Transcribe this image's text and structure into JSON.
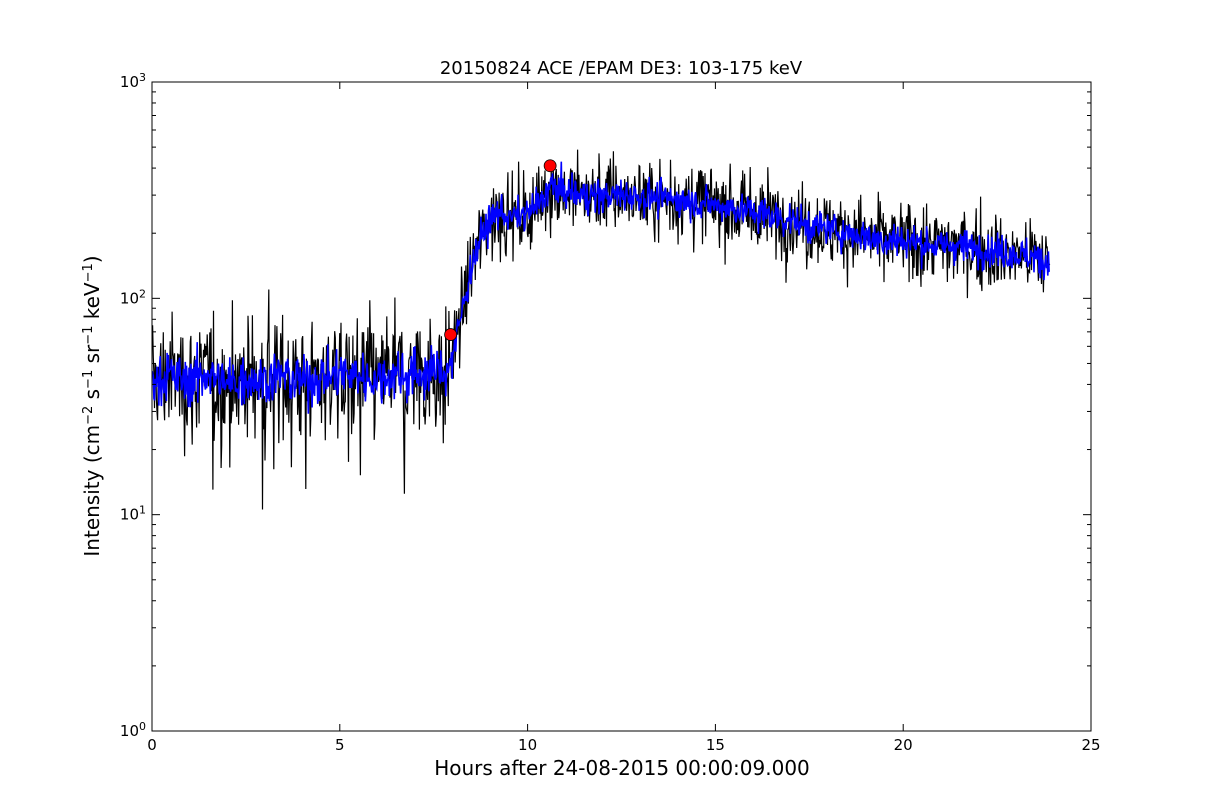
{
  "chart_data": {
    "type": "line",
    "title": "20150824 ACE /EPAM DE3: 103-175 keV",
    "xlabel": "Hours after 24-08-2015 00:00:09.000",
    "ylabel": "Intensity (cm$^{-2}$ s$^{-1}$ sr$^{-1}$ keV$^{-1}$)",
    "xlim": [
      0,
      25
    ],
    "ylim": [
      1,
      1000
    ],
    "yscale": "log",
    "grid": false,
    "xticks": [
      0,
      5,
      10,
      15,
      20,
      25
    ],
    "xtick_labels": [
      "0",
      "5",
      "10",
      "15",
      "20",
      "25"
    ],
    "yticks": [
      1,
      10,
      100,
      1000
    ],
    "ytick_labels": [
      {
        "base": "10",
        "exp": "0"
      },
      {
        "base": "10",
        "exp": "1"
      },
      {
        "base": "10",
        "exp": "2"
      },
      {
        "base": "10",
        "exp": "3"
      }
    ],
    "series": [
      {
        "role": "raw",
        "color": "#000000",
        "x": [
          0.0,
          0.5,
          1.0,
          1.5,
          2.0,
          2.5,
          3.0,
          3.5,
          4.0,
          4.5,
          5.0,
          5.5,
          6.0,
          6.5,
          7.0,
          7.5,
          7.9,
          8.1,
          8.3,
          8.5,
          8.7,
          9.0,
          9.3,
          9.5,
          10.0,
          10.3,
          10.6,
          11.0,
          11.5,
          12.0,
          12.5,
          13.0,
          13.5,
          14.0,
          14.5,
          15.0,
          15.5,
          16.0,
          16.5,
          17.0,
          17.5,
          18.0,
          18.5,
          19.0,
          19.5,
          20.0,
          20.5,
          21.0,
          21.5,
          22.0,
          22.5,
          23.0,
          23.5,
          23.9
        ],
        "y": [
          42,
          44,
          41,
          45,
          40,
          43,
          42,
          44,
          41,
          43,
          45,
          44,
          42,
          45,
          44,
          46,
          47,
          65,
          95,
          140,
          180,
          230,
          255,
          235,
          245,
          275,
          330,
          310,
          300,
          295,
          300,
          298,
          290,
          285,
          280,
          270,
          260,
          250,
          240,
          230,
          215,
          210,
          200,
          195,
          185,
          185,
          180,
          175,
          175,
          170,
          165,
          160,
          155,
          145
        ]
      },
      {
        "role": "smoothed",
        "color": "#0000ff",
        "x": [
          0.0,
          0.5,
          1.0,
          1.5,
          2.0,
          2.5,
          3.0,
          3.5,
          4.0,
          4.5,
          5.0,
          5.5,
          6.0,
          6.5,
          7.0,
          7.5,
          7.9,
          8.1,
          8.3,
          8.5,
          8.7,
          9.0,
          9.3,
          9.5,
          10.0,
          10.3,
          10.6,
          11.0,
          11.5,
          12.0,
          12.5,
          13.0,
          13.5,
          14.0,
          14.5,
          15.0,
          15.5,
          16.0,
          16.5,
          17.0,
          17.5,
          18.0,
          18.5,
          19.0,
          19.5,
          20.0,
          20.5,
          21.0,
          21.5,
          22.0,
          22.5,
          23.0,
          23.5,
          23.9
        ],
        "y": [
          42,
          44,
          41,
          45,
          40,
          43,
          42,
          44,
          41,
          43,
          45,
          44,
          42,
          45,
          44,
          46,
          47,
          65,
          95,
          140,
          180,
          230,
          255,
          235,
          245,
          275,
          330,
          310,
          300,
          295,
          300,
          298,
          290,
          285,
          280,
          270,
          260,
          250,
          240,
          230,
          215,
          210,
          200,
          195,
          185,
          185,
          180,
          175,
          175,
          170,
          165,
          160,
          155,
          145
        ]
      }
    ],
    "markers": [
      {
        "x": 7.95,
        "y": 68,
        "color": "#ff0000"
      },
      {
        "x": 10.6,
        "y": 410,
        "color": "#ff0000"
      }
    ]
  }
}
